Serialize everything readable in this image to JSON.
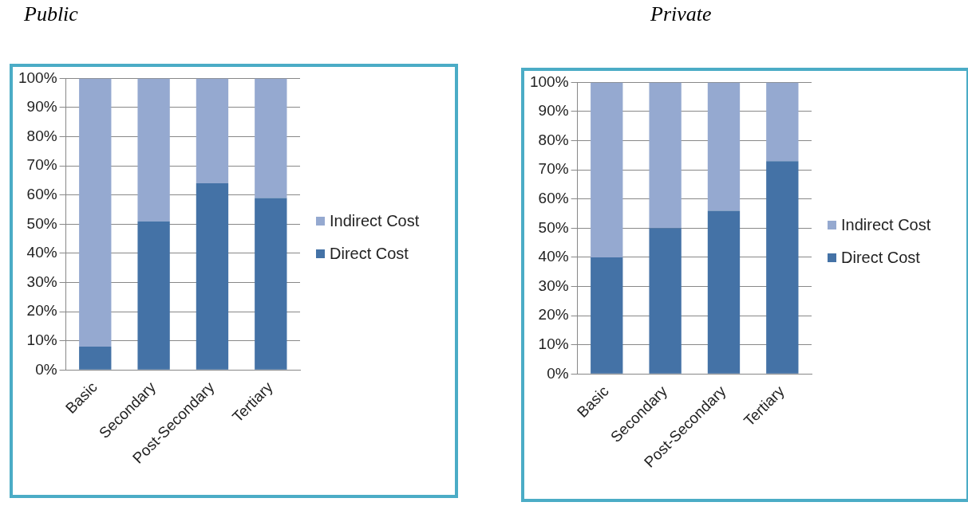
{
  "chart_data": [
    {
      "type": "bar",
      "title": "Public",
      "categories": [
        "Basic",
        "Secondary",
        "Post-Secondary",
        "Tertiary"
      ],
      "stacked": true,
      "series": [
        {
          "name": "Direct Cost",
          "color": "#4472a6",
          "values": [
            8,
            51,
            64,
            59
          ]
        },
        {
          "name": "Indirect Cost",
          "color": "#95a9d0",
          "values": [
            92,
            49,
            36,
            41
          ]
        }
      ],
      "ylim": [
        0,
        100
      ],
      "yticks": [
        {
          "value": 0,
          "label": "0%"
        },
        {
          "value": 10,
          "label": "10%"
        },
        {
          "value": 20,
          "label": "20%"
        },
        {
          "value": 30,
          "label": "30%"
        },
        {
          "value": 40,
          "label": "40%"
        },
        {
          "value": 50,
          "label": "50%"
        },
        {
          "value": 60,
          "label": "60%"
        },
        {
          "value": 70,
          "label": "70%"
        },
        {
          "value": 80,
          "label": "80%"
        },
        {
          "value": 90,
          "label": "90%"
        },
        {
          "value": 100,
          "label": "100%"
        }
      ],
      "grid": "y",
      "legend": "right"
    },
    {
      "type": "bar",
      "title": "Private",
      "categories": [
        "Basic",
        "Secondary",
        "Post-Secondary",
        "Tertiary"
      ],
      "stacked": true,
      "series": [
        {
          "name": "Direct Cost",
          "color": "#4472a6",
          "values": [
            40,
            50,
            56,
            73
          ]
        },
        {
          "name": "Indirect Cost",
          "color": "#95a9d0",
          "values": [
            60,
            50,
            44,
            27
          ]
        }
      ],
      "ylim": [
        0,
        100
      ],
      "yticks": [
        {
          "value": 0,
          "label": "0%"
        },
        {
          "value": 10,
          "label": "10%"
        },
        {
          "value": 20,
          "label": "20%"
        },
        {
          "value": 30,
          "label": "30%"
        },
        {
          "value": 40,
          "label": "40%"
        },
        {
          "value": 50,
          "label": "50%"
        },
        {
          "value": 60,
          "label": "60%"
        },
        {
          "value": 70,
          "label": "70%"
        },
        {
          "value": 80,
          "label": "80%"
        },
        {
          "value": 90,
          "label": "90%"
        },
        {
          "value": 100,
          "label": "100%"
        }
      ],
      "grid": "y",
      "legend": "right"
    }
  ]
}
